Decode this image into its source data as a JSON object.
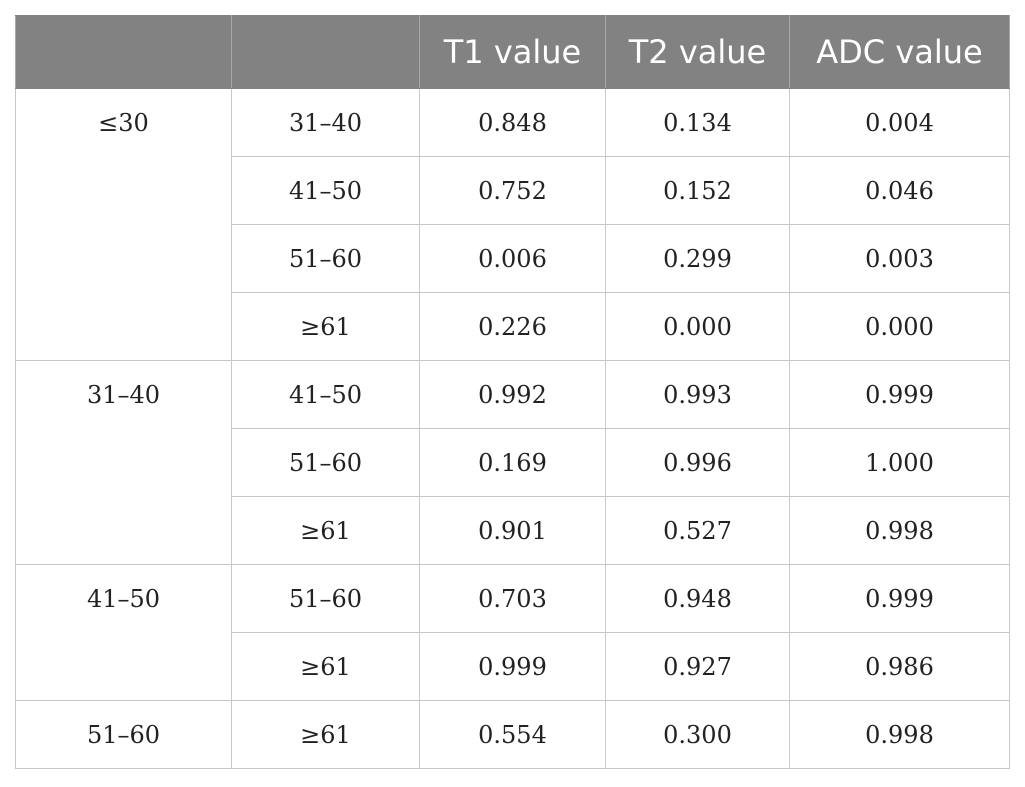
{
  "table": {
    "headers": [
      "",
      "",
      "T1 value",
      "T2 value",
      "ADC value"
    ],
    "groups": [
      {
        "label": "≤30",
        "rows": [
          {
            "compare": "31–40",
            "t1": "0.848",
            "t2": "0.134",
            "adc": "0.004"
          },
          {
            "compare": "41–50",
            "t1": "0.752",
            "t2": "0.152",
            "adc": "0.046"
          },
          {
            "compare": "51–60",
            "t1": "0.006",
            "t2": "0.299",
            "adc": "0.003"
          },
          {
            "compare": "≥61",
            "t1": "0.226",
            "t2": "0.000",
            "adc": "0.000"
          }
        ]
      },
      {
        "label": "31–40",
        "rows": [
          {
            "compare": "41–50",
            "t1": "0.992",
            "t2": "0.993",
            "adc": "0.999"
          },
          {
            "compare": "51–60",
            "t1": "0.169",
            "t2": "0.996",
            "adc": "1.000"
          },
          {
            "compare": "≥61",
            "t1": "0.901",
            "t2": "0.527",
            "adc": "0.998"
          }
        ]
      },
      {
        "label": "41–50",
        "rows": [
          {
            "compare": "51–60",
            "t1": "0.703",
            "t2": "0.948",
            "adc": "0.999"
          },
          {
            "compare": "≥61",
            "t1": "0.999",
            "t2": "0.927",
            "adc": "0.986"
          }
        ]
      },
      {
        "label": "51–60",
        "rows": [
          {
            "compare": "≥61",
            "t1": "0.554",
            "t2": "0.300",
            "adc": "0.998"
          }
        ]
      }
    ]
  }
}
